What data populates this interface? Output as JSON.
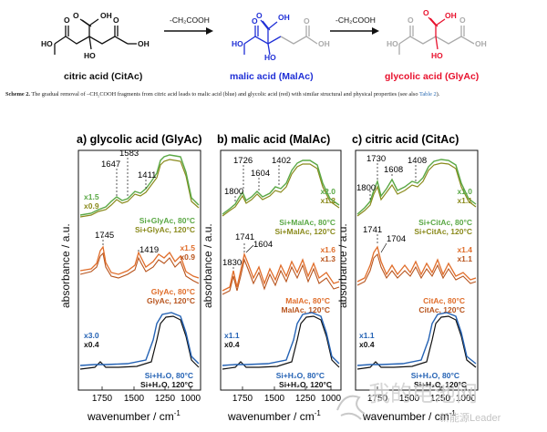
{
  "scheme": {
    "step_label_1": "-CH₂COOH",
    "step_label_2": "-CH₂COOH",
    "molecules": [
      {
        "name": "citric acid (CitAc)",
        "color": "#111111",
        "labels": {
          "oh_top": "OH",
          "o_top": "O",
          "o_left": "O",
          "o_right": "O",
          "ho_left": "HO",
          "ho_mid": "HO",
          "oh_right": "OH"
        }
      },
      {
        "name": "malic acid (MalAc)",
        "color": "#1f2fd6",
        "labels": {
          "oh_top": "OH",
          "o_top": "O",
          "o_left": "O",
          "o_right": "O",
          "ho_left": "HO",
          "ho_mid": "HO",
          "oh_right": "OH"
        }
      },
      {
        "name": "glycolic acid (GlyAc)",
        "color": "#e8112d",
        "labels": {
          "oh_top": "OH",
          "o_top": "O",
          "o_left": "O",
          "o_right": "O",
          "ho_left": "HO",
          "ho_mid": "HO",
          "oh_right": "OH"
        }
      }
    ]
  },
  "caption": {
    "label": "Scheme 2.",
    "text": " The gradual removal of –CH₂COOH fragments from citric acid leads to malic acid (blue) and glycolic acid (red) with similar structural and physical properties (see also ",
    "ref": "Table 2",
    "end": ")."
  },
  "figure": {
    "ylabel": "absorbance / a.u.",
    "xlabel": "wavenumber / cm",
    "xlabel_sup": "-1",
    "ticks": [
      "1750",
      "1500",
      "1250",
      "1000"
    ],
    "colors": {
      "green": "#5aa845",
      "olive": "#8a8a1c",
      "orange": "#e06d2a",
      "brown": "#b8541d",
      "blue": "#2462b4",
      "black": "#111111"
    },
    "panels": [
      {
        "title": "a) glycolic acid (GlyAc)",
        "top_peaks": [
          "1647",
          "1583",
          "1411"
        ],
        "top_scale": [
          "x1.5",
          "x0.9"
        ],
        "top_legend": [
          "Si+GlyAc, 80°C",
          "Si+GlyAc, 120°C"
        ],
        "mid_peaks": [
          "1745",
          "1419"
        ],
        "mid_scale": [
          "x1.5",
          "x0.9"
        ],
        "mid_legend": [
          "GlyAc, 80°C",
          "GlyAc, 120°C"
        ],
        "bot_scale": [
          "x3.0",
          "x0.4"
        ],
        "bot_legend": [
          "Si+H₂O, 80°C",
          "Si+H₂O, 120°C"
        ]
      },
      {
        "title": "b) malic acid (MalAc)",
        "top_peaks": [
          "1726",
          "1604",
          "1402",
          "1800"
        ],
        "top_scale": [
          "x2.0",
          "x1.2"
        ],
        "top_legend": [
          "Si+MalAc, 80°C",
          "Si+MalAc, 120°C"
        ],
        "mid_peaks": [
          "1741",
          "1604",
          "1830"
        ],
        "mid_scale": [
          "x1.6",
          "x1.3"
        ],
        "mid_legend": [
          "MalAc, 80°C",
          "MalAc, 120°C"
        ],
        "bot_scale": [
          "x1.1",
          "x0.4"
        ],
        "bot_legend": [
          "Si+H₂O, 80°C",
          "Si+H₂O, 120°C"
        ]
      },
      {
        "title": "c) citric acid (CitAc)",
        "top_peaks": [
          "1730",
          "1608",
          "1408",
          "1800"
        ],
        "top_scale": [
          "x1.0",
          "x1.1"
        ],
        "top_legend": [
          "Si+CitAc, 80°C",
          "Si+CitAc, 120°C"
        ],
        "mid_peaks": [
          "1741",
          "1704"
        ],
        "mid_scale": [
          "x1.4",
          "x1.1"
        ],
        "mid_legend": [
          "CitAc, 80°C",
          "CitAc, 120°C"
        ],
        "bot_scale": [
          "x1.1",
          "x0.4"
        ],
        "bot_legend": [
          "Si+H₂O, 80°C",
          "Si+H₂O, 120°C"
        ]
      }
    ]
  },
  "watermark": {
    "line1": "我的电池网",
    "line2": "新能源Leader"
  }
}
